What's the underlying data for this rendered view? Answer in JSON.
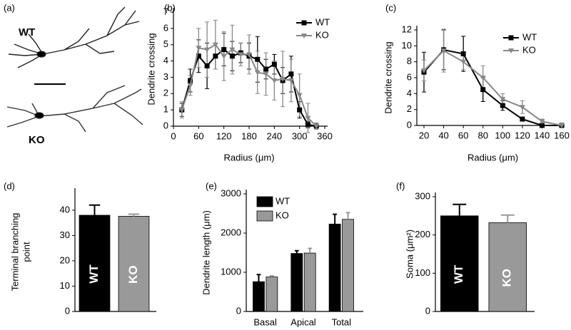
{
  "image_panel": {
    "label": "(a)",
    "labels": [
      "WT",
      "KO"
    ]
  },
  "chart_data": [
    {
      "type": "line",
      "panel_label": "(b)",
      "xlabel": "Radius (μm)",
      "ylabel": "Dendrite crossing",
      "x": [
        20,
        40,
        60,
        80,
        100,
        120,
        140,
        160,
        180,
        200,
        220,
        240,
        260,
        280,
        300,
        320,
        340
      ],
      "xlim": [
        0,
        360
      ],
      "xticks": [
        0,
        60,
        120,
        180,
        240,
        300,
        360
      ],
      "ylim": [
        0,
        7
      ],
      "yticks": [
        0,
        1,
        2,
        3,
        4,
        5,
        6,
        7
      ],
      "series": [
        {
          "name": "WT",
          "color": "#000000",
          "marker": "square",
          "values": [
            1.0,
            2.8,
            4.3,
            3.7,
            4.3,
            4.7,
            4.3,
            4.5,
            4.3,
            4.1,
            3.5,
            3.8,
            2.8,
            3.2,
            1.0,
            0.1,
            0
          ],
          "errors": [
            0.4,
            0.7,
            1.0,
            1.4,
            0.8,
            1.0,
            0.9,
            0.6,
            0.8,
            1.4,
            0.6,
            0.6,
            0.8,
            1.1,
            0.5,
            0.2,
            0.1
          ]
        },
        {
          "name": "KO",
          "color": "#888888",
          "marker": "triangle-down",
          "values": [
            1.0,
            2.5,
            4.8,
            4.7,
            5.0,
            4.3,
            4.7,
            4.4,
            4.4,
            3.3,
            3.2,
            2.8,
            2.9,
            2.8,
            1.9,
            0.5,
            0
          ],
          "errors": [
            0.5,
            0.6,
            1.2,
            1.7,
            1.5,
            1.5,
            1.5,
            0.7,
            1.2,
            1.3,
            1.3,
            1.2,
            1.7,
            1.3,
            1.3,
            0.9,
            0.2
          ]
        }
      ]
    },
    {
      "type": "line",
      "panel_label": "(c)",
      "xlabel": "Radius (μm)",
      "ylabel": "Dendrite crossing",
      "x": [
        20,
        40,
        60,
        80,
        100,
        120,
        140,
        160
      ],
      "xlim": [
        20,
        160
      ],
      "xticks": [
        20,
        40,
        60,
        80,
        100,
        120,
        140,
        160
      ],
      "ylim": [
        0,
        12
      ],
      "yticks": [
        0,
        2,
        4,
        6,
        8,
        10,
        12
      ],
      "series": [
        {
          "name": "WT",
          "color": "#000000",
          "marker": "square",
          "values": [
            6.7,
            9.5,
            9.0,
            4.5,
            2.5,
            0.8,
            0,
            0
          ],
          "errors": [
            2.5,
            2.5,
            2.2,
            1.5,
            0.6,
            0.2,
            0.1,
            0
          ]
        },
        {
          "name": "KO",
          "color": "#888888",
          "marker": "triangle-down",
          "values": [
            6.9,
            9.4,
            8.0,
            6.0,
            3.3,
            2.3,
            0.5,
            0
          ],
          "errors": [
            1.3,
            2.7,
            1.0,
            1.5,
            0.7,
            0.8,
            0.3,
            0
          ]
        }
      ]
    },
    {
      "type": "bar",
      "panel_label": "(d)",
      "ylabel": [
        "Terminal branching",
        "point"
      ],
      "categories": [
        "WT",
        "KO"
      ],
      "values": [
        38,
        37.6
      ],
      "errors": [
        4,
        0.8
      ],
      "colors": [
        "#000000",
        "#999999"
      ],
      "ylim": [
        0,
        47
      ],
      "yticks": [
        0,
        10,
        20,
        30,
        40
      ]
    },
    {
      "type": "bar",
      "panel_label": "(e)",
      "ylabel": "Dendrite length (μm)",
      "categories": [
        "Basal",
        "Apical",
        "Total"
      ],
      "series": [
        {
          "name": "WT",
          "color": "#000000",
          "values": [
            760,
            1480,
            2230
          ],
          "errors": [
            180,
            70,
            250
          ]
        },
        {
          "name": "KO",
          "color": "#999999",
          "values": [
            880,
            1490,
            2350
          ],
          "errors": [
            30,
            120,
            170
          ]
        }
      ],
      "ylim": [
        0,
        3000
      ],
      "yticks": [
        0,
        1000,
        2000,
        3000
      ]
    },
    {
      "type": "bar",
      "panel_label": "(f)",
      "ylabel": "Soma (μm²)",
      "categories": [
        "WT",
        "KO"
      ],
      "values": [
        250,
        232
      ],
      "errors": [
        30,
        20
      ],
      "colors": [
        "#000000",
        "#999999"
      ],
      "ylim": [
        0,
        300
      ],
      "yticks": [
        0,
        100,
        200,
        300
      ]
    }
  ]
}
